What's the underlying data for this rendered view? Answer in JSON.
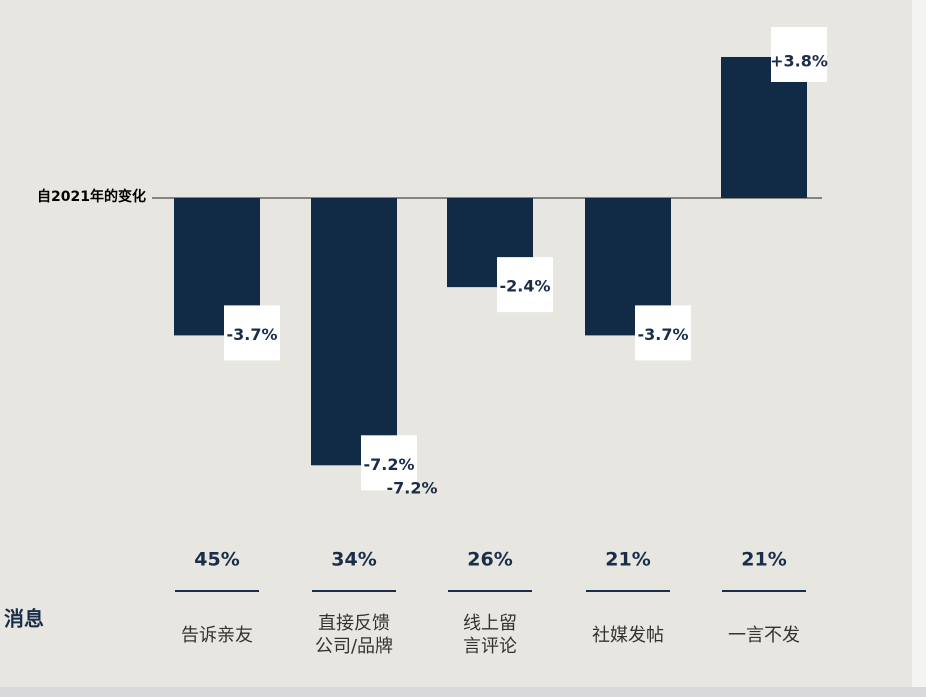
{
  "chart_data": {
    "type": "bar",
    "baseline_label": "自2021年的变化",
    "side_text": "消息",
    "categories": [
      [
        "告诉亲友"
      ],
      [
        "直接反馈",
        "公司/品牌"
      ],
      [
        "线上留",
        "言评论"
      ],
      [
        "社媒发帖"
      ],
      [
        "一言不发"
      ]
    ],
    "values": [
      -3.7,
      -7.2,
      -2.4,
      -3.7,
      3.8
    ],
    "value_labels": [
      "-3.7%",
      "-7.2%",
      "-2.4%",
      "-3.7%",
      "+3.8%"
    ],
    "extra_label": "-7.2%",
    "shares": {
      "values": [
        45,
        34,
        26,
        21,
        21
      ],
      "value_labels": [
        "45%",
        "34%",
        "26%",
        "21%",
        "21%"
      ]
    },
    "color": "#112a45",
    "ylim": [
      -8,
      4.5
    ]
  }
}
